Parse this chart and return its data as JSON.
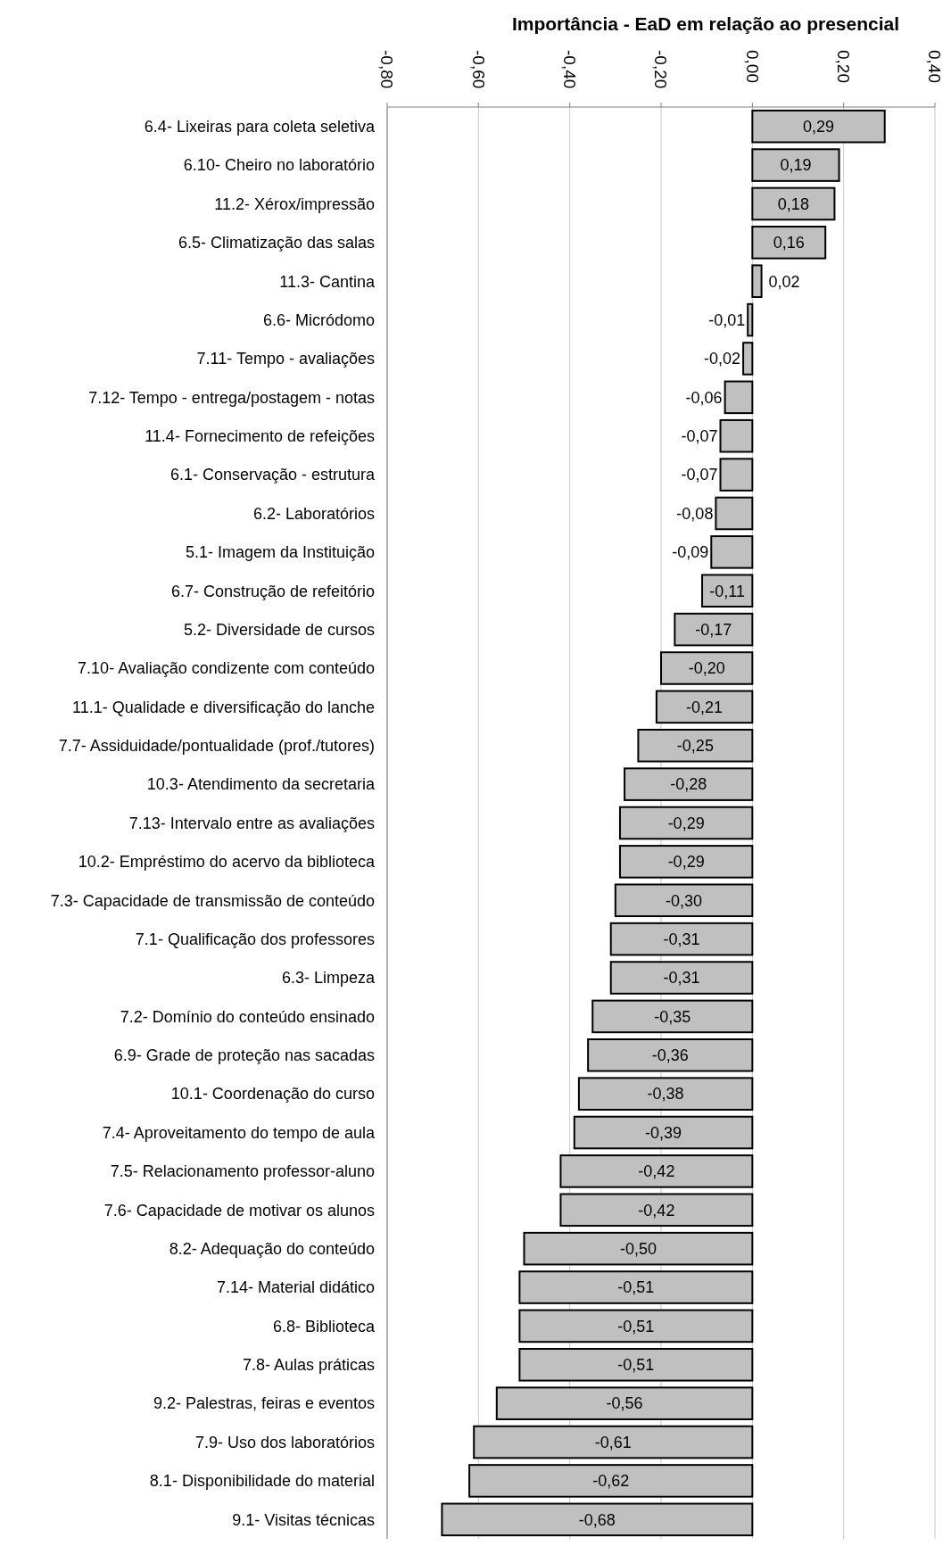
{
  "chart_data": {
    "type": "bar",
    "orientation": "horizontal",
    "title": "Importância - EaD em relação ao presencial",
    "categories": [
      "6.4- Lixeiras para coleta seletiva",
      "6.10- Cheiro no laboratório",
      "11.2- Xérox/impressão",
      "6.5- Climatização das salas",
      "11.3- Cantina",
      "6.6- Micródomo",
      "7.11- Tempo - avaliações",
      "7.12- Tempo - entrega/postagem - notas",
      "11.4- Fornecimento de refeições",
      "6.1- Conservação - estrutura",
      "6.2- Laboratórios",
      "5.1- Imagem da Instituição",
      "6.7- Construção de refeitório",
      "5.2- Diversidade de cursos",
      "7.10- Avaliação condizente com conteúdo",
      "11.1- Qualidade e diversificação do lanche",
      "7.7- Assiduidade/pontualidade (prof./tutores)",
      "10.3- Atendimento da secretaria",
      "7.13- Intervalo entre as avaliações",
      "10.2- Empréstimo do acervo da biblioteca",
      "7.3- Capacidade de transmissão de conteúdo",
      "7.1- Qualificação dos professores",
      "6.3- Limpeza",
      "7.2- Domínio do conteúdo ensinado",
      "6.9- Grade de proteção nas sacadas",
      "10.1- Coordenação do curso",
      "7.4- Aproveitamento do tempo de aula",
      "7.5- Relacionamento professor-aluno",
      "7.6- Capacidade de motivar os alunos",
      "8.2- Adequação do conteúdo",
      "7.14- Material didático",
      "6.8- Biblioteca",
      "7.8- Aulas práticas",
      "9.2- Palestras, feiras e eventos",
      "7.9- Uso dos laboratórios",
      "8.1- Disponibilidade do material",
      "9.1- Visitas técnicas"
    ],
    "values": [
      0.29,
      0.19,
      0.18,
      0.16,
      0.02,
      -0.01,
      -0.02,
      -0.06,
      -0.07,
      -0.07,
      -0.08,
      -0.09,
      -0.11,
      -0.17,
      -0.2,
      -0.21,
      -0.25,
      -0.28,
      -0.29,
      -0.29,
      -0.3,
      -0.31,
      -0.31,
      -0.35,
      -0.36,
      -0.38,
      -0.39,
      -0.42,
      -0.42,
      -0.5,
      -0.51,
      -0.51,
      -0.51,
      -0.56,
      -0.61,
      -0.62,
      -0.68
    ],
    "value_labels": [
      "0,29",
      "0,19",
      "0,18",
      "0,16",
      "0,02",
      "-0,01",
      "-0,02",
      "-0,06",
      "-0,07",
      "-0,07",
      "-0,08",
      "-0,09",
      "-0,11",
      "-0,17",
      "-0,20",
      "-0,21",
      "-0,25",
      "-0,28",
      "-0,29",
      "-0,29",
      "-0,30",
      "-0,31",
      "-0,31",
      "-0,35",
      "-0,36",
      "-0,38",
      "-0,39",
      "-0,42",
      "-0,42",
      "-0,50",
      "-0,51",
      "-0,51",
      "-0,51",
      "-0,56",
      "-0,61",
      "-0,62",
      "-0,68"
    ],
    "color": "#c0c0c0",
    "xlim": [
      -0.8,
      0.4
    ],
    "xticks": [
      {
        "value": -0.8,
        "label": "-0,80"
      },
      {
        "value": -0.6,
        "label": "-0,60"
      },
      {
        "value": -0.4,
        "label": "-0,40"
      },
      {
        "value": -0.2,
        "label": "-0,20"
      },
      {
        "value": 0,
        "label": "0,00"
      },
      {
        "value": 0.2,
        "label": "0,20"
      },
      {
        "value": 0.4,
        "label": "0,40"
      }
    ],
    "grid": "x"
  }
}
